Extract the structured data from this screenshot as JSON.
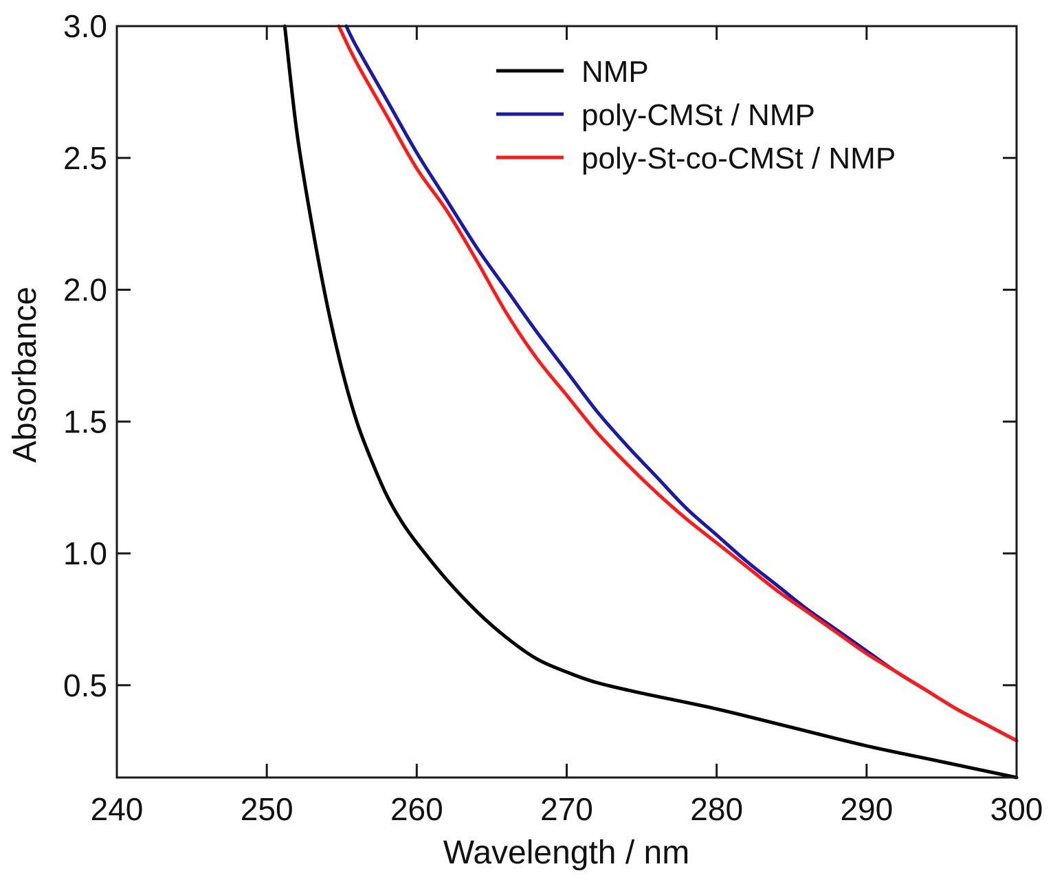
{
  "chart_data": {
    "type": "line",
    "title": "",
    "xlabel": "Wavelength / nm",
    "ylabel": "Absorbance",
    "xlim": [
      240,
      300
    ],
    "ylim": [
      0.15,
      3.0
    ],
    "xticks": [
      240,
      250,
      260,
      270,
      280,
      290,
      300
    ],
    "xtick_labels": [
      "240",
      "250",
      "260",
      "270",
      "280",
      "290",
      "300"
    ],
    "yticks": [
      0.5,
      1.0,
      1.5,
      2.0,
      2.5,
      3.0
    ],
    "ytick_labels": [
      "0.5",
      "1.0",
      "1.5",
      "2.0",
      "2.5",
      "3.0"
    ],
    "grid": false,
    "legend_position": "top-right",
    "series": [
      {
        "name": "NMP",
        "color": "#000000",
        "x": [
          251.2,
          252,
          253,
          254,
          255,
          256,
          257,
          258,
          259,
          260,
          262,
          264,
          266,
          268,
          270,
          272,
          275,
          280,
          285,
          290,
          295,
          300
        ],
        "y": [
          3.0,
          2.6,
          2.25,
          1.95,
          1.7,
          1.5,
          1.35,
          1.22,
          1.12,
          1.04,
          0.9,
          0.78,
          0.68,
          0.6,
          0.55,
          0.51,
          0.47,
          0.41,
          0.34,
          0.27,
          0.21,
          0.15
        ]
      },
      {
        "name": "poly-CMSt / NMP",
        "color": "#1a1aa6",
        "x": [
          255.3,
          256,
          258,
          260,
          262,
          264,
          266,
          268,
          270,
          272,
          274,
          276,
          278,
          280,
          282,
          284,
          286,
          288,
          290,
          292,
          294,
          296,
          298,
          300
        ],
        "y": [
          3.0,
          2.92,
          2.72,
          2.52,
          2.34,
          2.16,
          2.0,
          1.84,
          1.69,
          1.54,
          1.41,
          1.29,
          1.17,
          1.07,
          0.97,
          0.88,
          0.79,
          0.71,
          0.63,
          0.55,
          0.48,
          0.41,
          0.35,
          0.29
        ]
      },
      {
        "name": "poly-St-co-CMSt / NMP",
        "color": "#ff1a1a",
        "x": [
          254.8,
          256,
          258,
          260,
          262,
          264,
          266,
          268,
          270,
          272,
          274,
          276,
          278,
          280,
          282,
          284,
          286,
          288,
          290,
          292,
          294,
          296,
          298,
          300
        ],
        "y": [
          3.0,
          2.86,
          2.66,
          2.46,
          2.3,
          2.11,
          1.91,
          1.74,
          1.6,
          1.46,
          1.34,
          1.23,
          1.13,
          1.04,
          0.95,
          0.86,
          0.78,
          0.7,
          0.62,
          0.55,
          0.48,
          0.41,
          0.35,
          0.29
        ]
      }
    ]
  }
}
